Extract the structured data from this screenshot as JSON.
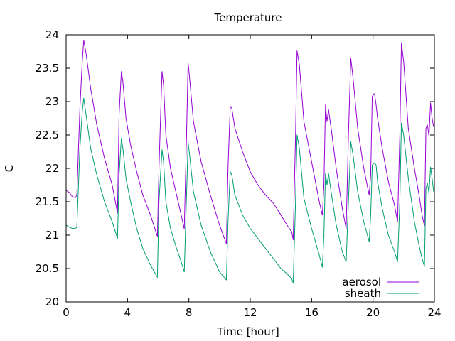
{
  "chart_data": {
    "type": "line",
    "title": "Temperature",
    "xlabel": "Time [hour]",
    "ylabel": "C",
    "xlim": [
      0,
      24
    ],
    "ylim": [
      20,
      24
    ],
    "xticks": [
      0,
      4,
      8,
      12,
      16,
      20,
      24
    ],
    "yticks": [
      20,
      20.5,
      21,
      21.5,
      22,
      22.5,
      23,
      23.5,
      24
    ],
    "ytick_labels": [
      "20",
      "20.5",
      "21",
      "21.5",
      "22",
      "22.5",
      "23",
      "23.5",
      "24"
    ],
    "grid": false,
    "legend_position": "bottom-right",
    "series": [
      {
        "name": "aerosol",
        "color": "#9400d3",
        "x": [
          0,
          0.2,
          0.4,
          0.6,
          0.7,
          0.9,
          1.05,
          1.15,
          1.3,
          1.6,
          2.0,
          2.5,
          3.0,
          3.35,
          3.45,
          3.6,
          3.7,
          3.9,
          4.2,
          4.6,
          5.0,
          5.5,
          5.95,
          6.05,
          6.25,
          6.35,
          6.5,
          6.8,
          7.2,
          7.5,
          7.7,
          7.85,
          7.95,
          8.05,
          8.3,
          8.8,
          9.4,
          10.0,
          10.45,
          10.55,
          10.7,
          10.8,
          11.0,
          11.5,
          12.0,
          12.5,
          13.0,
          13.5,
          14.0,
          14.4,
          14.7,
          14.8,
          14.95,
          15.05,
          15.2,
          15.5,
          16.0,
          16.5,
          16.7,
          16.8,
          16.9,
          17.0,
          17.1,
          17.3,
          17.6,
          18.0,
          18.25,
          18.4,
          18.55,
          18.7,
          19.0,
          19.4,
          19.75,
          19.85,
          19.95,
          20.1,
          20.2,
          20.3,
          20.6,
          21.0,
          21.4,
          21.6,
          21.75,
          21.85,
          22.0,
          22.3,
          22.7,
          23.0,
          23.2,
          23.35,
          23.45,
          23.55,
          23.65,
          23.75,
          23.85,
          23.95
        ],
        "y": [
          21.67,
          21.64,
          21.58,
          21.56,
          21.6,
          22.9,
          23.6,
          23.92,
          23.72,
          23.2,
          22.65,
          22.15,
          21.75,
          21.33,
          22.8,
          23.45,
          23.3,
          22.75,
          22.35,
          21.95,
          21.6,
          21.3,
          20.98,
          22.0,
          23.45,
          23.25,
          22.5,
          22.0,
          21.6,
          21.3,
          21.09,
          22.5,
          23.58,
          23.35,
          22.7,
          22.1,
          21.6,
          21.15,
          20.87,
          22.0,
          22.93,
          22.9,
          22.6,
          22.25,
          21.95,
          21.75,
          21.6,
          21.48,
          21.3,
          21.15,
          21.05,
          20.93,
          22.5,
          23.76,
          23.55,
          22.7,
          22.1,
          21.5,
          21.3,
          21.75,
          22.95,
          22.7,
          22.88,
          22.55,
          22.0,
          21.4,
          21.1,
          22.5,
          23.65,
          23.35,
          22.6,
          22.0,
          21.6,
          21.9,
          23.08,
          23.12,
          22.95,
          22.75,
          22.3,
          21.8,
          21.45,
          21.2,
          22.5,
          23.87,
          23.6,
          22.6,
          22.0,
          21.6,
          21.3,
          21.14,
          22.6,
          22.65,
          22.48,
          22.98,
          22.75,
          22.62
        ]
      },
      {
        "name": "sheath",
        "color": "#009e73",
        "x": [
          0,
          0.2,
          0.4,
          0.6,
          0.7,
          0.9,
          1.05,
          1.15,
          1.3,
          1.6,
          2.0,
          2.5,
          3.0,
          3.35,
          3.45,
          3.6,
          3.7,
          3.9,
          4.2,
          4.6,
          5.0,
          5.5,
          5.95,
          6.05,
          6.25,
          6.35,
          6.5,
          6.8,
          7.2,
          7.5,
          7.7,
          7.85,
          7.95,
          8.05,
          8.3,
          8.8,
          9.4,
          10.0,
          10.45,
          10.55,
          10.7,
          10.8,
          11.0,
          11.5,
          12.0,
          12.5,
          13.0,
          13.5,
          14.0,
          14.4,
          14.7,
          14.8,
          14.95,
          15.05,
          15.2,
          15.5,
          16.0,
          16.5,
          16.7,
          16.8,
          16.9,
          17.0,
          17.1,
          17.3,
          17.6,
          18.0,
          18.25,
          18.4,
          18.55,
          18.7,
          19.0,
          19.4,
          19.75,
          19.85,
          19.95,
          20.1,
          20.2,
          20.3,
          20.6,
          21.0,
          21.4,
          21.6,
          21.75,
          21.85,
          22.0,
          22.3,
          22.7,
          23.0,
          23.2,
          23.35,
          23.45,
          23.55,
          23.65,
          23.75,
          23.85,
          23.95
        ],
        "y": [
          21.15,
          21.12,
          21.1,
          21.1,
          21.12,
          22.3,
          22.85,
          23.05,
          22.8,
          22.3,
          21.9,
          21.5,
          21.2,
          20.95,
          21.9,
          22.45,
          22.3,
          21.85,
          21.5,
          21.1,
          20.8,
          20.55,
          20.37,
          21.5,
          22.28,
          22.1,
          21.5,
          21.1,
          20.8,
          20.6,
          20.45,
          21.6,
          22.4,
          22.2,
          21.65,
          21.15,
          20.75,
          20.45,
          20.33,
          21.2,
          21.95,
          21.9,
          21.6,
          21.3,
          21.1,
          20.95,
          20.8,
          20.65,
          20.5,
          20.42,
          20.35,
          20.28,
          21.5,
          22.5,
          22.3,
          21.55,
          21.1,
          20.7,
          20.52,
          21.0,
          21.93,
          21.75,
          21.92,
          21.6,
          21.15,
          20.75,
          20.6,
          21.5,
          22.4,
          22.2,
          21.65,
          21.2,
          20.9,
          21.3,
          22.05,
          22.08,
          22.05,
          21.8,
          21.4,
          21.0,
          20.75,
          20.6,
          21.5,
          22.68,
          22.5,
          21.85,
          21.2,
          20.85,
          20.65,
          20.53,
          21.7,
          21.78,
          21.62,
          22.02,
          21.85,
          21.65
        ]
      }
    ]
  }
}
